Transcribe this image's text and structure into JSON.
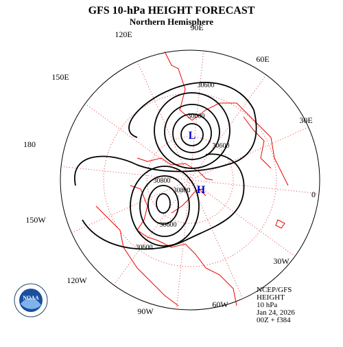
{
  "title": "GFS 10-hPa HEIGHT FORECAST",
  "subtitle": "Northern Hemisphere",
  "longitude_labels": [
    "90E",
    "60E",
    "30E",
    "0",
    "30W",
    "60W",
    "90W",
    "120W",
    "150W",
    "180",
    "150E",
    "120E"
  ],
  "contour_labels": [
    "30600",
    "30000",
    "30600",
    "30800",
    "30800",
    "30600",
    "30600"
  ],
  "pressure_centers": [
    "L",
    "H"
  ],
  "info": [
    "NCEP/GFS",
    "HEIGHT",
    "10 hPa",
    "Jan 24, 2026",
    "00Z + f384"
  ]
}
